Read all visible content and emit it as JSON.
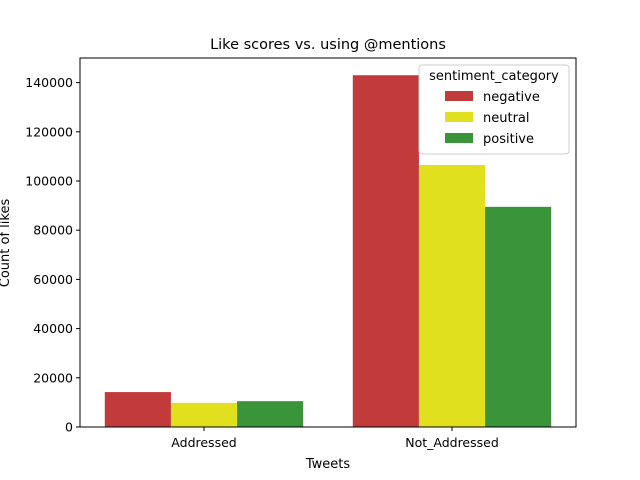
{
  "chart_data": {
    "type": "bar",
    "title": "Like scores vs. using @mentions",
    "xlabel": "Tweets",
    "ylabel": "Count of likes",
    "categories": [
      "Addressed",
      "Not_Addressed"
    ],
    "ylim": [
      0,
      150000
    ],
    "yticks": [
      0,
      20000,
      40000,
      60000,
      80000,
      100000,
      120000,
      140000
    ],
    "ytick_labels": [
      "0",
      "20000",
      "40000",
      "60000",
      "80000",
      "100000",
      "120000",
      "140000"
    ],
    "grid": false,
    "legend_title": "sentiment_category",
    "legend_position": "top-right",
    "series": [
      {
        "name": "negative",
        "color": "#c23b3b",
        "values": [
          14200,
          143000
        ]
      },
      {
        "name": "neutral",
        "color": "#e0e01f",
        "values": [
          9800,
          106500
        ]
      },
      {
        "name": "positive",
        "color": "#3a953a",
        "values": [
          10500,
          89500
        ]
      }
    ]
  }
}
